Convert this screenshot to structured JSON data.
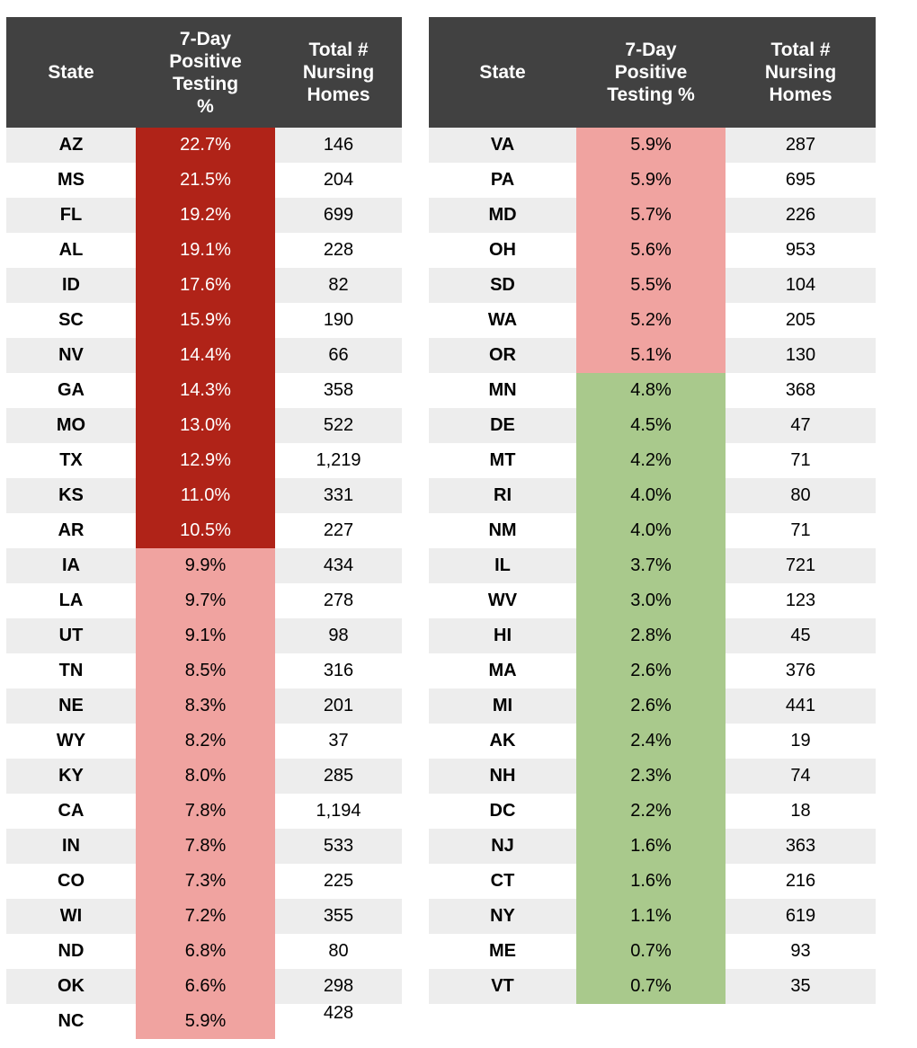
{
  "colors": {
    "header_bg": "#414141",
    "header_text": "#ffffff",
    "dark_red": "#b02318",
    "pink": "#f0a3a0",
    "green": "#a9c98c",
    "stripe": "#ededed"
  },
  "chart_data": {
    "type": "table",
    "tables": [
      {
        "headers": {
          "state": "State",
          "pct": "7-Day\nPositive\nTesting\n%",
          "homes": "Total #\nNursing\nHomes"
        },
        "rows": [
          [
            "AZ",
            "22.7%",
            "146",
            "high"
          ],
          [
            "MS",
            "21.5%",
            "204",
            "high"
          ],
          [
            "FL",
            "19.2%",
            "699",
            "high"
          ],
          [
            "AL",
            "19.1%",
            "228",
            "high"
          ],
          [
            "ID",
            "17.6%",
            "82",
            "high"
          ],
          [
            "SC",
            "15.9%",
            "190",
            "high"
          ],
          [
            "NV",
            "14.4%",
            "66",
            "high"
          ],
          [
            "GA",
            "14.3%",
            "358",
            "high"
          ],
          [
            "MO",
            "13.0%",
            "522",
            "high"
          ],
          [
            "TX",
            "12.9%",
            "1,219",
            "high"
          ],
          [
            "KS",
            "11.0%",
            "331",
            "high"
          ],
          [
            "AR",
            "10.5%",
            "227",
            "high"
          ],
          [
            "IA",
            "9.9%",
            "434",
            "mid"
          ],
          [
            "LA",
            "9.7%",
            "278",
            "mid"
          ],
          [
            "UT",
            "9.1%",
            "98",
            "mid"
          ],
          [
            "TN",
            "8.5%",
            "316",
            "mid"
          ],
          [
            "NE",
            "8.3%",
            "201",
            "mid"
          ],
          [
            "WY",
            "8.2%",
            "37",
            "mid"
          ],
          [
            "KY",
            "8.0%",
            "285",
            "mid"
          ],
          [
            "CA",
            "7.8%",
            "1,194",
            "mid"
          ],
          [
            "IN",
            "7.8%",
            "533",
            "mid"
          ],
          [
            "CO",
            "7.3%",
            "225",
            "mid"
          ],
          [
            "WI",
            "7.2%",
            "355",
            "mid"
          ],
          [
            "ND",
            "6.8%",
            "80",
            "mid"
          ],
          [
            "OK",
            "6.6%",
            "298",
            "mid"
          ],
          [
            "NC",
            "5.9%",
            "428",
            "mid",
            "raised"
          ]
        ]
      },
      {
        "headers": {
          "state": "State",
          "pct": "7-Day\nPositive\nTesting %",
          "homes": "Total #\nNursing\nHomes"
        },
        "rows": [
          [
            "VA",
            "5.9%",
            "287",
            "mid"
          ],
          [
            "PA",
            "5.9%",
            "695",
            "mid"
          ],
          [
            "MD",
            "5.7%",
            "226",
            "mid"
          ],
          [
            "OH",
            "5.6%",
            "953",
            "mid"
          ],
          [
            "SD",
            "5.5%",
            "104",
            "mid"
          ],
          [
            "WA",
            "5.2%",
            "205",
            "mid"
          ],
          [
            "OR",
            "5.1%",
            "130",
            "mid"
          ],
          [
            "MN",
            "4.8%",
            "368",
            "low"
          ],
          [
            "DE",
            "4.5%",
            "47",
            "low"
          ],
          [
            "MT",
            "4.2%",
            "71",
            "low"
          ],
          [
            "RI",
            "4.0%",
            "80",
            "low"
          ],
          [
            "NM",
            "4.0%",
            "71",
            "low"
          ],
          [
            "IL",
            "3.7%",
            "721",
            "low"
          ],
          [
            "WV",
            "3.0%",
            "123",
            "low"
          ],
          [
            "HI",
            "2.8%",
            "45",
            "low"
          ],
          [
            "MA",
            "2.6%",
            "376",
            "low"
          ],
          [
            "MI",
            "2.6%",
            "441",
            "low"
          ],
          [
            "AK",
            "2.4%",
            "19",
            "low"
          ],
          [
            "NH",
            "2.3%",
            "74",
            "low"
          ],
          [
            "DC",
            "2.2%",
            "18",
            "low"
          ],
          [
            "NJ",
            "1.6%",
            "363",
            "low"
          ],
          [
            "CT",
            "1.6%",
            "216",
            "low"
          ],
          [
            "NY",
            "1.1%",
            "619",
            "low"
          ],
          [
            "ME",
            "0.7%",
            "93",
            "low"
          ],
          [
            "VT",
            "0.7%",
            "35",
            "low"
          ]
        ]
      }
    ]
  }
}
